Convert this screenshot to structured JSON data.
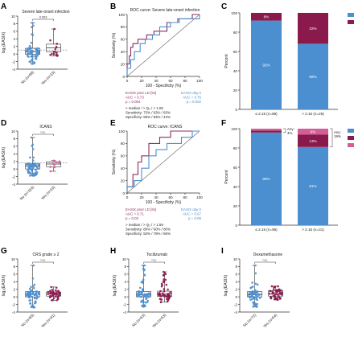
{
  "colors": {
    "blue": "#4b8fd0",
    "magenta": "#8b1a4c",
    "pink": "#d45f98",
    "navy": "#1f3a6a",
    "purple": "#8b2e5e",
    "axis": "#333333"
  },
  "chart_data": [
    {
      "panel": "A",
      "type": "scatter",
      "title": "Severe late-onset infection",
      "ylabel": "log₂(EASIX)",
      "ylim": [
        -4,
        10
      ],
      "yticks": [
        "-4",
        "-2",
        "0",
        "2",
        "4",
        "6",
        "8",
        "10"
      ],
      "groups": [
        {
          "label": "No (n=98)",
          "color": "blue",
          "median": 0.6,
          "q1": -0.1,
          "q3": 1.5,
          "min": -2.6,
          "max": 8.2
        },
        {
          "label": "Yes (n=15)",
          "color": "magenta",
          "median": 1.6,
          "q1": 0.6,
          "q3": 2.6,
          "min": -0.5,
          "max": 6.6
        }
      ],
      "cutoff": 1.06,
      "sig": "0.003"
    },
    {
      "panel": "B",
      "type": "line",
      "title": "ROC curve: Severe late-onset infection",
      "xlabel": "100 - Specificity (%)",
      "ylabel": "Sensitivity (%)",
      "xticks": [
        "0",
        "20",
        "40",
        "60",
        "80",
        "100"
      ],
      "yticks": [
        "0",
        "20",
        "40",
        "60",
        "80",
        "100"
      ],
      "series": [
        {
          "color": "purple",
          "points": [
            [
              0,
              0
            ],
            [
              0,
              20
            ],
            [
              3,
              20
            ],
            [
              3,
              33
            ],
            [
              5,
              33
            ],
            [
              5,
              47
            ],
            [
              8,
              47
            ],
            [
              8,
              53
            ],
            [
              15,
              53
            ],
            [
              15,
              60
            ],
            [
              27,
              60
            ],
            [
              27,
              67
            ],
            [
              37,
              67
            ],
            [
              37,
              73
            ],
            [
              55,
              73
            ],
            [
              55,
              87
            ],
            [
              70,
              87
            ],
            [
              70,
              93
            ],
            [
              90,
              93
            ],
            [
              90,
              100
            ],
            [
              100,
              100
            ]
          ]
        },
        {
          "color": "blue",
          "points": [
            [
              0,
              0
            ],
            [
              0,
              13
            ],
            [
              5,
              13
            ],
            [
              5,
              27
            ],
            [
              10,
              27
            ],
            [
              10,
              40
            ],
            [
              18,
              40
            ],
            [
              18,
              53
            ],
            [
              25,
              53
            ],
            [
              25,
              60
            ],
            [
              35,
              60
            ],
            [
              35,
              67
            ],
            [
              45,
              67
            ],
            [
              45,
              80
            ],
            [
              60,
              80
            ],
            [
              60,
              87
            ],
            [
              72,
              87
            ],
            [
              72,
              93
            ],
            [
              100,
              93
            ],
            [
              100,
              100
            ]
          ]
        }
      ],
      "legend_left": {
        "name": "EASIX prior LD (lst)",
        "auc": "AUC = 0.73",
        "p": "p = 0.004"
      },
      "legend_right": {
        "name": "EASIX day 0",
        "auc": "AUC = 0.75",
        "p": "p = 0.002"
      },
      "notes": [
        "> median / > Q₃ / > 1.06",
        "Sensitivity: 73% / 63% / 83%",
        "Specificity: 55% / 83% / 44%"
      ]
    },
    {
      "panel": "C",
      "type": "bar",
      "ylabel": "Percent",
      "ylim": [
        0,
        100
      ],
      "yticks": [
        "0",
        "20",
        "40",
        "60",
        "80",
        "100"
      ],
      "categories": [
        "≤ 2.15 (n=88)",
        "> 2.15 (n=25)"
      ],
      "series": [
        {
          "name": "No (n=98)",
          "color": "blue",
          "values": [
            92,
            68
          ],
          "labels": [
            "92%",
            "68%"
          ]
        },
        {
          "name": "Yes (n=15)",
          "color": "magenta",
          "values": [
            8,
            32
          ],
          "labels": [
            "8%",
            "32%"
          ]
        }
      ]
    },
    {
      "panel": "D",
      "type": "scatter",
      "title": "ICANS",
      "ylabel": "log₂(EASIX)",
      "ylim": [
        -4,
        10
      ],
      "yticks": [
        "-4",
        "-2",
        "0",
        "2",
        "4",
        "6",
        "8",
        "10"
      ],
      "groups": [
        {
          "label": "No (n=116)",
          "color": "blue",
          "median": 0.7,
          "q1": 0.0,
          "q3": 1.4,
          "min": -1.8,
          "max": 8.3
        },
        {
          "label": "Yes (n=10)",
          "color": "pink",
          "median": 1.3,
          "q1": 0.6,
          "q3": 1.9,
          "min": -0.6,
          "max": 2.2
        }
      ],
      "cutoff": 1.59,
      "sig": "n.s."
    },
    {
      "panel": "E",
      "type": "line",
      "title": "ROC curve: ICANS",
      "xlabel": "100 - Specificity (%)",
      "ylabel": "Sensitivity (%)",
      "xticks": [
        "0",
        "20",
        "40",
        "60",
        "80",
        "100"
      ],
      "yticks": [
        "0",
        "20",
        "40",
        "60",
        "80",
        "100"
      ],
      "series": [
        {
          "color": "purple",
          "points": [
            [
              0,
              0
            ],
            [
              0,
              10
            ],
            [
              8,
              10
            ],
            [
              8,
              30
            ],
            [
              15,
              30
            ],
            [
              15,
              50
            ],
            [
              20,
              50
            ],
            [
              20,
              60
            ],
            [
              30,
              60
            ],
            [
              30,
              80
            ],
            [
              45,
              80
            ],
            [
              45,
              90
            ],
            [
              60,
              90
            ],
            [
              60,
              100
            ],
            [
              100,
              100
            ]
          ]
        },
        {
          "color": "blue",
          "points": [
            [
              0,
              0
            ],
            [
              0,
              10
            ],
            [
              10,
              10
            ],
            [
              10,
              20
            ],
            [
              20,
              20
            ],
            [
              20,
              40
            ],
            [
              30,
              40
            ],
            [
              30,
              60
            ],
            [
              40,
              60
            ],
            [
              40,
              70
            ],
            [
              55,
              70
            ],
            [
              55,
              80
            ],
            [
              75,
              80
            ],
            [
              75,
              90
            ],
            [
              90,
              90
            ],
            [
              90,
              100
            ],
            [
              100,
              100
            ]
          ]
        }
      ],
      "legend_left": {
        "name": "EASIX prior LD (lst)",
        "auc": "AUC = 0.71",
        "p": "p = 0.03"
      },
      "legend_right": {
        "name": "EASIX day 0",
        "auc": "AUC = 0.67",
        "p": "p = 0.08"
      },
      "notes": [
        "> median / > Q₃ / > 1.59",
        "Sensitivity: 80% / 60% / 80%",
        "Specificity: 53% / 79% / 65%"
      ]
    },
    {
      "panel": "F",
      "type": "bar",
      "ylabel": "Percent",
      "ylim": [
        0,
        100
      ],
      "yticks": [
        "0",
        "20",
        "40",
        "60",
        "80",
        "100"
      ],
      "categories": [
        "≤ 2.15 (n=95)",
        "> 2.15 (n=31)"
      ],
      "series": [
        {
          "name": "None (n=116)",
          "color": "blue",
          "values": [
            96,
            81
          ],
          "labels": [
            "96%",
            "81%"
          ]
        },
        {
          "name": "Grade 1–2 (n=6)",
          "color": "magenta",
          "values": [
            2,
            13
          ],
          "labels": [
            "",
            "13%"
          ]
        },
        {
          "name": "Grade 3–4 (n=4)",
          "color": "pink",
          "values": [
            2,
            6
          ],
          "labels": [
            "",
            "6%"
          ]
        }
      ],
      "brackets": [
        {
          "text": "Any:",
          "value": "4%"
        },
        {
          "text": "Any:",
          "value": "19%"
        }
      ]
    },
    {
      "panel": "G",
      "type": "scatter",
      "title": "CRS grade ≥ 2",
      "ylabel": "log₂(EASIX)",
      "ylim": [
        -4,
        10
      ],
      "yticks": [
        "-4",
        "-2",
        "0",
        "2",
        "4",
        "6",
        "8",
        "10"
      ],
      "groups": [
        {
          "label": "No (n=85)",
          "color": "blue",
          "median": 0.7,
          "q1": 0.0,
          "q3": 1.4,
          "min": -2.8,
          "max": 8.3
        },
        {
          "label": "Yes (n=41)",
          "color": "magenta",
          "median": 0.8,
          "q1": 0.2,
          "q3": 1.3,
          "min": -0.9,
          "max": 2.6
        }
      ],
      "sig": "n.s."
    },
    {
      "panel": "H",
      "type": "scatter",
      "title": "Tocilizumab",
      "ylabel": "log₂(EASIX)",
      "ylim": [
        -4,
        10
      ],
      "yticks": [
        "-4",
        "-2",
        "0",
        "2",
        "4",
        "6",
        "8",
        "10"
      ],
      "groups": [
        {
          "label": "No (n=63)",
          "color": "blue",
          "median": 0.6,
          "q1": 0.0,
          "q3": 1.4,
          "min": -2.6,
          "max": 8.3
        },
        {
          "label": "Yes (n=63)",
          "color": "magenta",
          "median": 0.8,
          "q1": 0.1,
          "q3": 1.5,
          "min": -1.4,
          "max": 6.6
        }
      ],
      "sig": "n.s."
    },
    {
      "panel": "I",
      "type": "scatter",
      "title": "Dexamethasone",
      "ylabel": "log₂(EASIX)",
      "ylim": [
        -4,
        10
      ],
      "yticks": [
        "-4",
        "-2",
        "0",
        "2",
        "4",
        "6",
        "8",
        "10"
      ],
      "groups": [
        {
          "label": "No (n=72)",
          "color": "blue",
          "median": 0.6,
          "q1": 0.0,
          "q3": 1.4,
          "min": -2.6,
          "max": 8.3
        },
        {
          "label": "Yes (n=54)",
          "color": "magenta",
          "median": 0.8,
          "q1": 0.2,
          "q3": 1.6,
          "min": -0.8,
          "max": 2.8
        }
      ],
      "sig": "n.s."
    }
  ]
}
